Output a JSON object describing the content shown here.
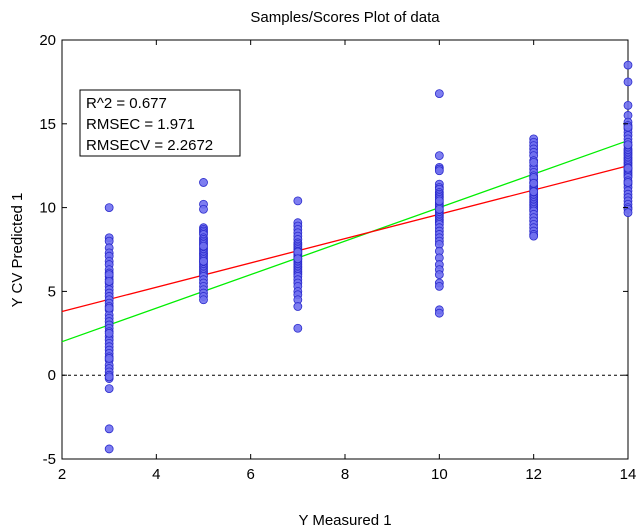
{
  "chart_data": {
    "type": "scatter",
    "title": "Samples/Scores Plot of data",
    "xlabel": "Y Measured 1",
    "ylabel": "Y CV Predicted 1",
    "xlim": [
      2,
      14
    ],
    "ylim": [
      -5,
      20
    ],
    "xticks": [
      2,
      4,
      6,
      8,
      10,
      12,
      14
    ],
    "yticks": [
      -5,
      0,
      5,
      10,
      15,
      20
    ],
    "grid": false,
    "stats": [
      "R^2 = 0.677",
      "RMSEC = 1.971",
      "RMSECV = 2.2672"
    ],
    "colors": {
      "points_fill": "#7070ee",
      "points_edge": "#2a2acc",
      "fit_line": "#ff0000",
      "identity_line": "#00ee00",
      "zero_line": "#000000"
    },
    "fit_line": {
      "x": [
        2,
        14
      ],
      "y": [
        3.8,
        12.5
      ]
    },
    "identity_line": {
      "x": [
        2,
        14
      ],
      "y": [
        2,
        14
      ]
    },
    "reference_line": {
      "y": 0,
      "style": "dashed"
    },
    "series": [
      {
        "x": [
          3,
          3,
          3,
          3,
          3,
          3,
          3,
          3,
          3,
          3,
          3,
          3,
          3,
          3,
          3,
          3,
          3,
          3,
          3,
          3,
          3,
          3,
          3,
          3,
          3,
          3,
          3,
          3,
          3,
          3,
          3,
          3,
          3,
          3,
          3,
          3,
          3,
          3,
          3,
          3,
          3,
          3,
          3,
          3,
          3,
          3,
          3,
          3,
          3
        ],
        "y": [
          10.0,
          8.2,
          8.0,
          7.6,
          7.3,
          7.1,
          6.8,
          6.6,
          6.3,
          6.1,
          5.9,
          5.7,
          5.5,
          5.3,
          5.1,
          4.9,
          4.7,
          4.5,
          4.3,
          4.1,
          3.9,
          3.6,
          3.4,
          3.2,
          3.0,
          2.8,
          2.6,
          2.3,
          2.1,
          1.9,
          1.7,
          1.5,
          1.3,
          1.1,
          0.9,
          0.6,
          0.4,
          0.2,
          0.0,
          -0.2,
          -0.8,
          -3.2,
          -4.4,
          6.0,
          4.0,
          2.5,
          1.0,
          -0.1,
          5.6
        ]
      },
      {
        "x": [
          5,
          5,
          5,
          5,
          5,
          5,
          5,
          5,
          5,
          5,
          5,
          5,
          5,
          5,
          5,
          5,
          5,
          5,
          5,
          5,
          5,
          5,
          5,
          5,
          5,
          5,
          5,
          5,
          5,
          5,
          5,
          5,
          5,
          5,
          5,
          5,
          5,
          5,
          5,
          5
        ],
        "y": [
          11.5,
          10.2,
          9.9,
          8.8,
          8.7,
          8.6,
          8.5,
          8.4,
          8.2,
          8.1,
          8.0,
          7.9,
          7.8,
          7.6,
          7.5,
          7.4,
          7.3,
          7.2,
          7.1,
          7.0,
          6.9,
          6.8,
          6.7,
          6.6,
          6.5,
          6.4,
          6.3,
          6.2,
          6.1,
          6.0,
          5.9,
          5.7,
          5.5,
          5.3,
          5.1,
          4.9,
          4.7,
          4.5,
          6.8,
          7.7
        ]
      },
      {
        "x": [
          7,
          7,
          7,
          7,
          7,
          7,
          7,
          7,
          7,
          7,
          7,
          7,
          7,
          7,
          7,
          7,
          7,
          7,
          7,
          7,
          7,
          7,
          7,
          7,
          7,
          7,
          7,
          7,
          7,
          7,
          7,
          7,
          7,
          7,
          7,
          7,
          7,
          7
        ],
        "y": [
          10.4,
          9.1,
          8.9,
          8.7,
          8.5,
          8.3,
          8.1,
          7.9,
          7.8,
          7.7,
          7.6,
          7.5,
          7.4,
          7.3,
          7.2,
          7.1,
          7.0,
          6.9,
          6.8,
          6.7,
          6.6,
          6.5,
          6.4,
          6.3,
          6.2,
          6.1,
          6.0,
          5.9,
          5.7,
          5.5,
          5.3,
          5.0,
          4.8,
          4.5,
          4.1,
          2.8,
          7.35,
          6.95
        ]
      },
      {
        "x": [
          10,
          10,
          10,
          10,
          10,
          10,
          10,
          10,
          10,
          10,
          10,
          10,
          10,
          10,
          10,
          10,
          10,
          10,
          10,
          10,
          10,
          10,
          10,
          10,
          10,
          10,
          10,
          10,
          10,
          10,
          10,
          10,
          10,
          10,
          10,
          10,
          10,
          10,
          10,
          10,
          10,
          10,
          10
        ],
        "y": [
          16.8,
          13.1,
          12.4,
          12.3,
          12.2,
          11.4,
          11.2,
          11.1,
          10.9,
          10.8,
          10.7,
          10.6,
          10.5,
          10.3,
          10.2,
          10.1,
          10.0,
          9.8,
          9.7,
          9.6,
          9.5,
          9.4,
          9.3,
          9.2,
          9.1,
          9.0,
          8.8,
          8.6,
          8.4,
          8.2,
          8.0,
          7.8,
          7.4,
          7.0,
          6.6,
          6.3,
          6.0,
          5.5,
          5.3,
          3.9,
          3.7,
          9.9,
          10.4
        ]
      },
      {
        "x": [
          12,
          12,
          12,
          12,
          12,
          12,
          12,
          12,
          12,
          12,
          12,
          12,
          12,
          12,
          12,
          12,
          12,
          12,
          12,
          12,
          12,
          12,
          12,
          12,
          12,
          12,
          12,
          12,
          12,
          12,
          12,
          12,
          12,
          12,
          12,
          12,
          12,
          12,
          12,
          12,
          12
        ],
        "y": [
          14.1,
          13.9,
          13.7,
          13.5,
          13.3,
          13.1,
          12.8,
          12.5,
          12.3,
          12.1,
          11.9,
          11.7,
          11.5,
          11.3,
          11.2,
          11.1,
          11.0,
          10.9,
          10.8,
          10.7,
          10.6,
          10.5,
          10.4,
          10.3,
          10.2,
          10.1,
          10.0,
          9.9,
          9.8,
          9.6,
          9.4,
          9.2,
          9.0,
          8.8,
          8.6,
          8.4,
          8.3,
          11.8,
          12.7,
          10.95,
          11.45
        ]
      },
      {
        "x": [
          14,
          14,
          14,
          14,
          14,
          14,
          14,
          14,
          14,
          14,
          14,
          14,
          14,
          14,
          14,
          14,
          14,
          14,
          14,
          14,
          14,
          14,
          14,
          14,
          14,
          14,
          14,
          14,
          14,
          14,
          14,
          14,
          14,
          14,
          14,
          14,
          14,
          14,
          14,
          14,
          14,
          14,
          14,
          14,
          14
        ],
        "y": [
          18.5,
          17.5,
          16.1,
          15.5,
          15.1,
          14.9,
          14.7,
          14.5,
          14.3,
          14.1,
          13.9,
          13.7,
          13.5,
          13.4,
          13.3,
          13.2,
          13.1,
          13.0,
          12.9,
          12.8,
          12.7,
          12.6,
          12.5,
          12.4,
          12.3,
          12.2,
          12.1,
          12.0,
          11.9,
          11.8,
          11.6,
          11.4,
          11.2,
          11.0,
          10.8,
          10.6,
          10.4,
          10.2,
          10.0,
          9.9,
          9.7,
          13.75,
          12.35,
          14.8,
          11.5
        ]
      }
    ]
  }
}
